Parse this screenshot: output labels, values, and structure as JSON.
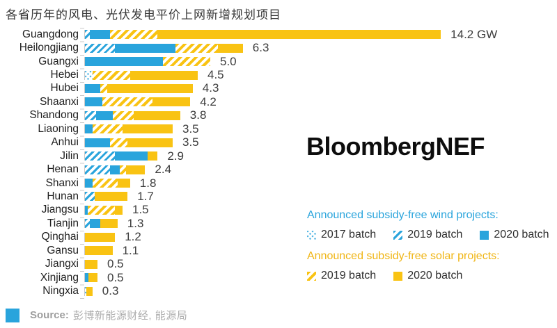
{
  "title": "各省历年的风电、光伏发电平价上网新增规划项目",
  "brand": "BloombergNEF",
  "colors": {
    "wind_blue": "#29a4dc",
    "solar_yellow": "#f9c313",
    "axis_gray": "#c9c9c9"
  },
  "chart_data": {
    "type": "bar",
    "orientation": "horizontal",
    "unit": "GW",
    "xlim": [
      0,
      14.2
    ],
    "legend_position": "bottom-right",
    "series_keys": [
      "wind_2017",
      "wind_2019",
      "wind_2020",
      "solar_2019",
      "solar_2020"
    ],
    "series_names": [
      "Wind 2017 batch",
      "Wind 2019 batch",
      "Wind 2020 batch",
      "Solar 2019 batch",
      "Solar 2020 batch"
    ],
    "bars": [
      {
        "name": "Guangdong",
        "total": 14.2,
        "label": "14.2 GW",
        "segments": [
          {
            "key": "wind_2019",
            "value": 0.2
          },
          {
            "key": "wind_2020",
            "value": 0.8
          },
          {
            "key": "solar_2019",
            "value": 1.9
          },
          {
            "key": "solar_2020",
            "value": 11.3
          }
        ]
      },
      {
        "name": "Heilongjiang",
        "total": 6.3,
        "label": "6.3",
        "segments": [
          {
            "key": "wind_2019",
            "value": 1.2
          },
          {
            "key": "wind_2020",
            "value": 2.4
          },
          {
            "key": "solar_2019",
            "value": 1.7
          },
          {
            "key": "solar_2020",
            "value": 1.0
          }
        ]
      },
      {
        "name": "Guangxi",
        "total": 5.0,
        "label": "5.0",
        "segments": [
          {
            "key": "wind_2020",
            "value": 3.1
          },
          {
            "key": "solar_2019",
            "value": 1.9
          }
        ]
      },
      {
        "name": "Hebei",
        "total": 4.5,
        "label": "4.5",
        "segments": [
          {
            "key": "wind_2017",
            "value": 0.3
          },
          {
            "key": "solar_2019",
            "value": 1.5
          },
          {
            "key": "solar_2020",
            "value": 2.7
          }
        ]
      },
      {
        "name": "Hubei",
        "total": 4.3,
        "label": "4.3",
        "segments": [
          {
            "key": "wind_2020",
            "value": 0.6
          },
          {
            "key": "solar_2019",
            "value": 0.3
          },
          {
            "key": "solar_2020",
            "value": 3.4
          }
        ]
      },
      {
        "name": "Shaanxi",
        "total": 4.2,
        "label": "4.2",
        "segments": [
          {
            "key": "wind_2020",
            "value": 0.7
          },
          {
            "key": "solar_2019",
            "value": 2.0
          },
          {
            "key": "solar_2020",
            "value": 1.5
          }
        ]
      },
      {
        "name": "Shandong",
        "total": 3.8,
        "label": "3.8",
        "segments": [
          {
            "key": "wind_2019",
            "value": 0.45
          },
          {
            "key": "wind_2020",
            "value": 0.65
          },
          {
            "key": "solar_2019",
            "value": 0.85
          },
          {
            "key": "solar_2020",
            "value": 1.85
          }
        ]
      },
      {
        "name": "Liaoning",
        "total": 3.5,
        "label": "3.5",
        "segments": [
          {
            "key": "wind_2020",
            "value": 0.3
          },
          {
            "key": "solar_2019",
            "value": 1.2
          },
          {
            "key": "solar_2020",
            "value": 2.0
          }
        ]
      },
      {
        "name": "Anhui",
        "total": 3.5,
        "label": "3.5",
        "segments": [
          {
            "key": "wind_2020",
            "value": 1.0
          },
          {
            "key": "solar_2019",
            "value": 0.7
          },
          {
            "key": "solar_2020",
            "value": 1.8
          }
        ]
      },
      {
        "name": "Jilin",
        "total": 2.9,
        "label": "2.9",
        "segments": [
          {
            "key": "wind_2019",
            "value": 1.2
          },
          {
            "key": "wind_2020",
            "value": 1.3
          },
          {
            "key": "solar_2020",
            "value": 0.4
          }
        ]
      },
      {
        "name": "Henan",
        "total": 2.4,
        "label": "2.4",
        "segments": [
          {
            "key": "wind_2019",
            "value": 1.0
          },
          {
            "key": "wind_2020",
            "value": 0.4
          },
          {
            "key": "solar_2019",
            "value": 0.25
          },
          {
            "key": "solar_2020",
            "value": 0.75
          }
        ]
      },
      {
        "name": "Shanxi",
        "total": 1.8,
        "label": "1.8",
        "segments": [
          {
            "key": "wind_2020",
            "value": 0.3
          },
          {
            "key": "solar_2019",
            "value": 1.0
          },
          {
            "key": "solar_2020",
            "value": 0.5
          }
        ]
      },
      {
        "name": "Hunan",
        "total": 1.7,
        "label": "1.7",
        "segments": [
          {
            "key": "wind_2019",
            "value": 0.4
          },
          {
            "key": "solar_2020",
            "value": 1.3
          }
        ]
      },
      {
        "name": "Jiangsu",
        "total": 1.5,
        "label": "1.5",
        "segments": [
          {
            "key": "wind_2020",
            "value": 0.1
          },
          {
            "key": "solar_2019",
            "value": 1.1
          },
          {
            "key": "solar_2020",
            "value": 0.3
          }
        ]
      },
      {
        "name": "Tianjin",
        "total": 1.3,
        "label": "1.3",
        "segments": [
          {
            "key": "wind_2019",
            "value": 0.2
          },
          {
            "key": "wind_2020",
            "value": 0.4
          },
          {
            "key": "solar_2020",
            "value": 0.7
          }
        ]
      },
      {
        "name": "Qinghai",
        "total": 1.2,
        "label": "1.2",
        "segments": [
          {
            "key": "solar_2020",
            "value": 1.2
          }
        ]
      },
      {
        "name": "Gansu",
        "total": 1.1,
        "label": "1.1",
        "segments": [
          {
            "key": "solar_2020",
            "value": 1.1
          }
        ]
      },
      {
        "name": "Jiangxi",
        "total": 0.5,
        "label": "0.5",
        "segments": [
          {
            "key": "solar_2020",
            "value": 0.5
          }
        ]
      },
      {
        "name": "Xinjiang",
        "total": 0.5,
        "label": "0.5",
        "segments": [
          {
            "key": "wind_2020",
            "value": 0.15
          },
          {
            "key": "solar_2020",
            "value": 0.35
          }
        ]
      },
      {
        "name": "Ningxia",
        "total": 0.3,
        "label": "0.3",
        "segments": [
          {
            "key": "wind_2017",
            "value": 0.05
          },
          {
            "key": "solar_2020",
            "value": 0.25
          }
        ]
      }
    ]
  },
  "legend": {
    "wind_header": "Announced subsidy-free wind projects:",
    "wind_items": [
      {
        "label": "2017 batch",
        "swatch": "wind-dotted"
      },
      {
        "label": "2019 batch",
        "swatch": "wind-hatched"
      },
      {
        "label": "2020 batch",
        "swatch": "wind-solid"
      }
    ],
    "solar_header": "Announced subsidy-free solar projects:",
    "solar_items": [
      {
        "label": "2019 batch",
        "swatch": "solar-hatched"
      },
      {
        "label": "2020 batch",
        "swatch": "solar-solid"
      }
    ]
  },
  "source": {
    "label": "Source:",
    "text": "彭博新能源财经, 能源局"
  }
}
